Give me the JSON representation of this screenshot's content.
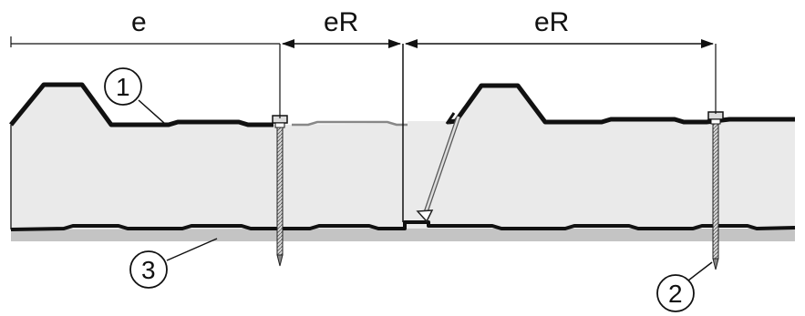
{
  "dimensions": {
    "e": "e",
    "eR_left": "eR",
    "eR_right": "eR"
  },
  "callouts": {
    "c1": "1",
    "c2": "2",
    "c3": "3"
  }
}
